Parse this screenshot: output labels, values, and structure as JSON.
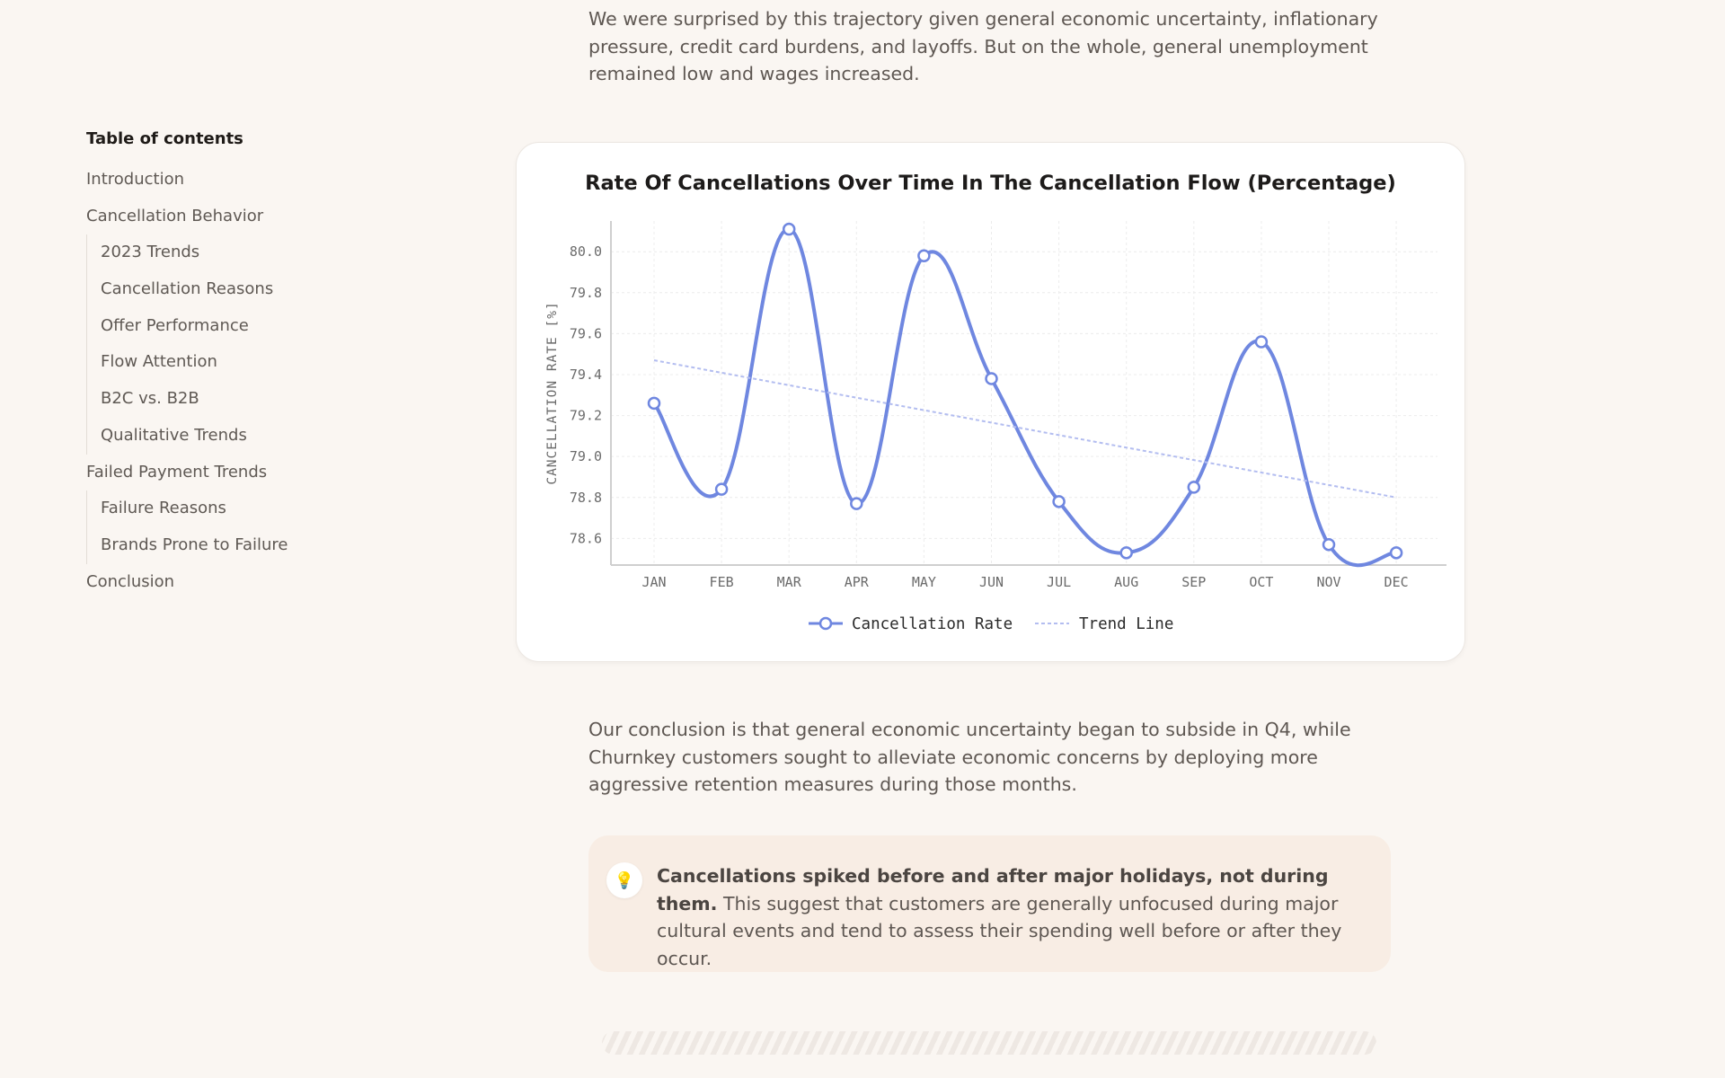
{
  "article": {
    "paragraph_top": "We were surprised by this trajectory given general economic uncertainty, inflationary pressure, credit card burdens, and layoffs. But on the whole, general unemployment remained low and wages increased.",
    "paragraph_bottom": "Our conclusion is that general economic uncertainty began to subside in Q4, while Churnkey customers sought to alleviate economic concerns by deploying more aggressive retention measures during those months."
  },
  "toc": {
    "title": "Table of contents",
    "items": [
      {
        "label": "Introduction",
        "level": 1
      },
      {
        "label": "Cancellation Behavior",
        "level": 1
      },
      {
        "label": "2023 Trends",
        "level": 2
      },
      {
        "label": "Cancellation Reasons",
        "level": 2
      },
      {
        "label": "Offer Performance",
        "level": 2
      },
      {
        "label": "Flow Attention",
        "level": 2
      },
      {
        "label": "B2C vs. B2B",
        "level": 2
      },
      {
        "label": "Qualitative Trends",
        "level": 2
      },
      {
        "label": "Failed Payment Trends",
        "level": 1
      },
      {
        "label": "Failure Reasons",
        "level": 2
      },
      {
        "label": "Brands Prone to Failure",
        "level": 2
      },
      {
        "label": "Conclusion",
        "level": 1
      }
    ]
  },
  "chart_data": {
    "type": "line",
    "title": "Rate Of Cancellations Over Time In The Cancellation Flow (Percentage)",
    "xlabel": "",
    "ylabel": "CANCELLATION RATE [%]",
    "categories": [
      "JAN",
      "FEB",
      "MAR",
      "APR",
      "MAY",
      "JUN",
      "JUL",
      "AUG",
      "SEP",
      "OCT",
      "NOV",
      "DEC"
    ],
    "yticks": [
      "80.0",
      "79.8",
      "79.6",
      "79.4",
      "79.2",
      "79.0",
      "78.8",
      "78.6"
    ],
    "ylim": [
      78.47,
      80.15
    ],
    "grid": true,
    "legend_position": "bottom",
    "series": [
      {
        "name": "Cancellation Rate",
        "values": [
          79.26,
          78.84,
          80.11,
          78.77,
          79.98,
          79.38,
          78.78,
          78.53,
          78.85,
          79.56,
          78.57,
          78.53
        ],
        "color": "#6f87e0",
        "style": "solid"
      },
      {
        "name": "Trend Line",
        "values": [
          79.47,
          79.41,
          79.35,
          79.29,
          79.23,
          79.17,
          79.11,
          79.05,
          78.99,
          78.92,
          78.86,
          78.8
        ],
        "color": "#b3bdf0",
        "style": "dashed"
      }
    ]
  },
  "callout": {
    "icon": "lightbulb-icon",
    "bold": "Cancellations spiked before and after major holidays, not during them.",
    "text": " This suggest that customers are generally unfocused during major cultural events and tend to assess their spending well before or after they occur."
  }
}
